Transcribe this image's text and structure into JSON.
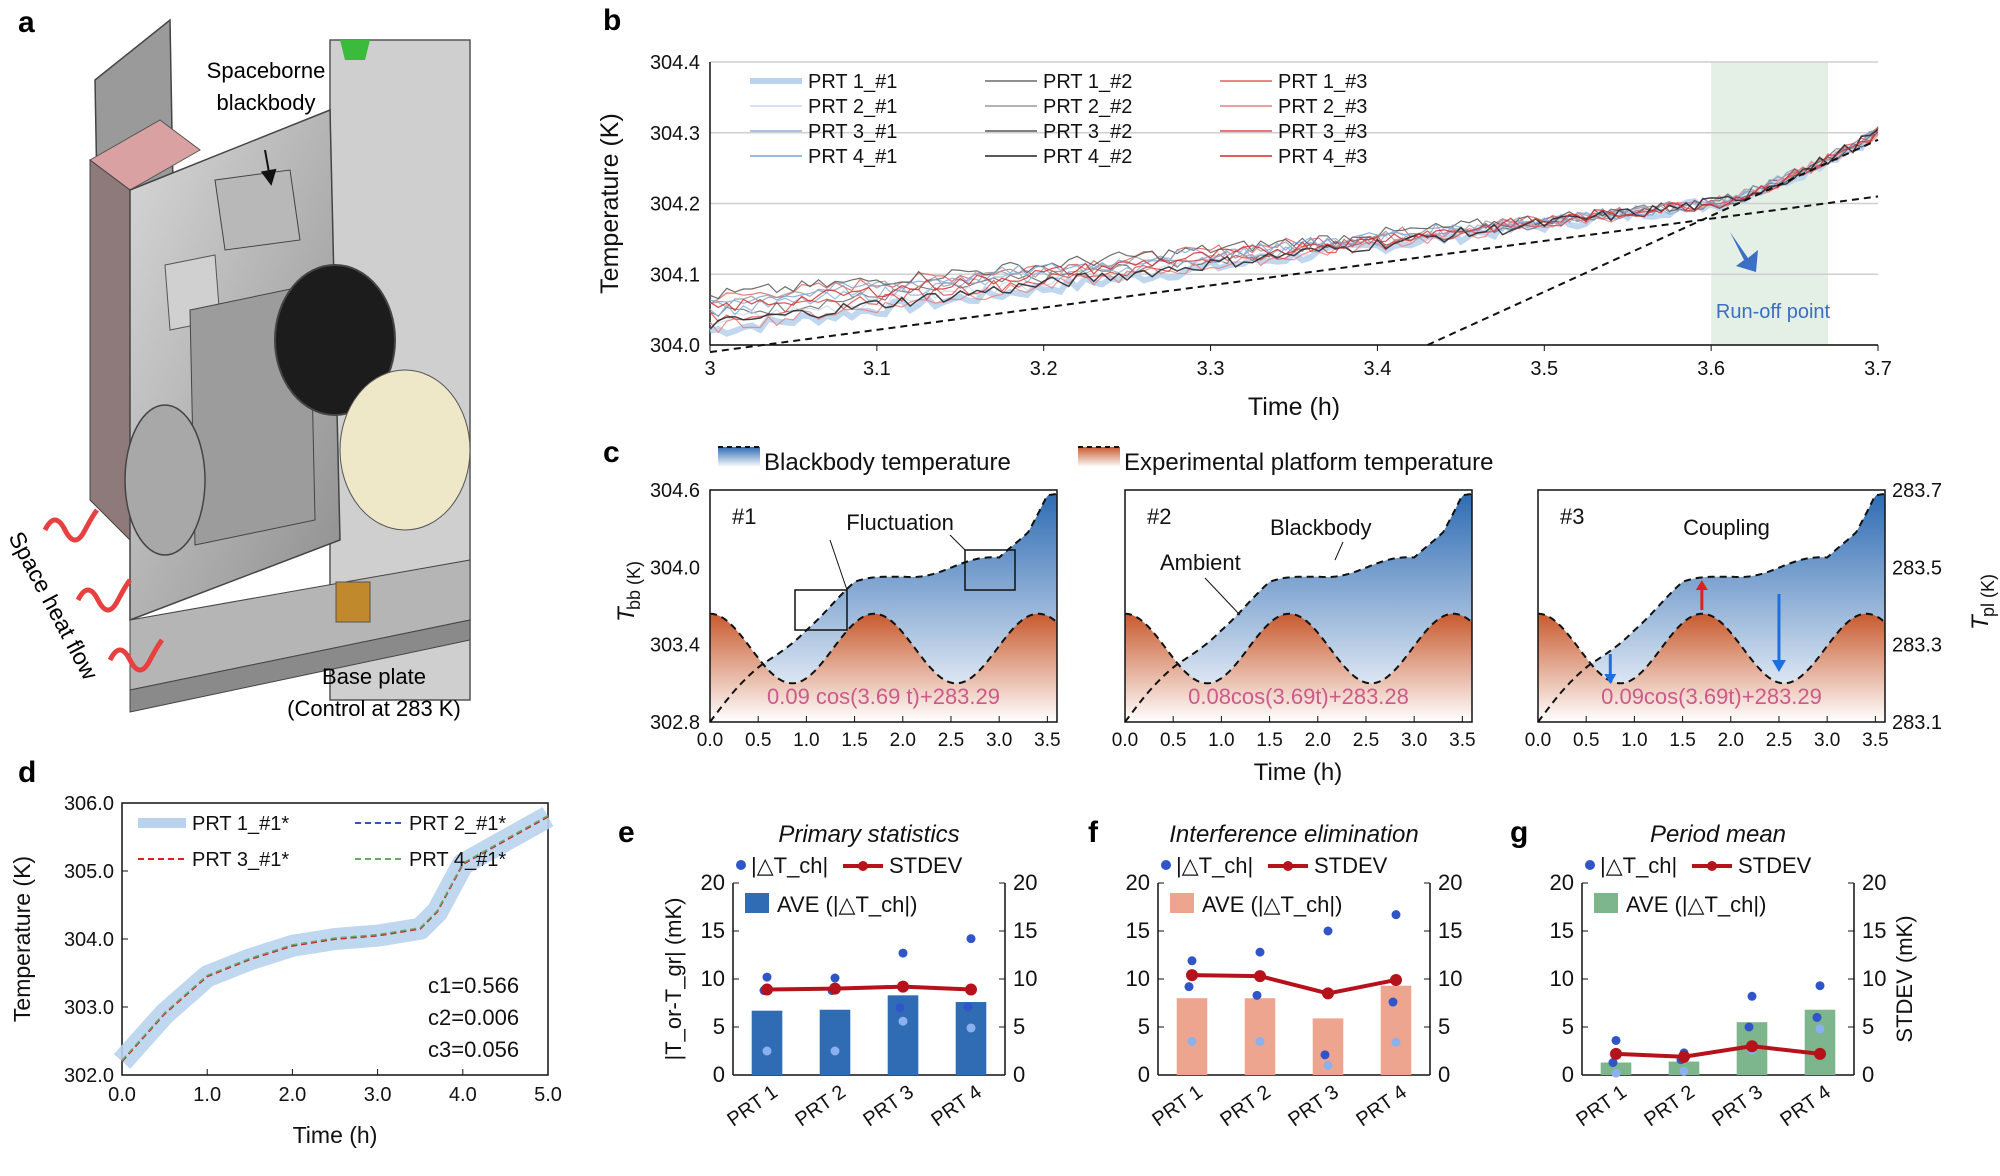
{
  "panels": {
    "a": "a",
    "b": "b",
    "c": "c",
    "d": "d",
    "e": "e",
    "f": "f",
    "g": "g"
  },
  "panel_a": {
    "label_blackbody_line1": "Spaceborne",
    "label_blackbody_line2": "blackbody",
    "label_heat": "Space heat flow",
    "label_base_line1": "Base plate",
    "label_base_line2": "(Control at 283 K)"
  },
  "colors": {
    "blue": "#2f6cb3",
    "lightblue": "#b9d3ee",
    "red": "#e0353b",
    "darkred": "#b5121b",
    "salmon": "#eea58f",
    "green": "#7db58c",
    "pink": "#cc5a8a",
    "runoff": "#3a6fc4"
  },
  "chart_data": [
    {
      "id": "b",
      "type": "line",
      "title": "",
      "xlabel": "Time (h)",
      "ylabel": "Temperature (K)",
      "xlim": [
        3.0,
        3.7
      ],
      "ylim": [
        304.0,
        304.4
      ],
      "xticks": [
        "3",
        "3.1",
        "3.2",
        "3.3",
        "3.4",
        "3.5",
        "3.6",
        "3.7"
      ],
      "yticks": [
        "304.0",
        "304.1",
        "304.2",
        "304.3",
        "304.4"
      ],
      "legend": [
        "PRT 1_#1",
        "PRT 1_#2",
        "PRT 1_#3",
        "PRT 2_#1",
        "PRT 2_#2",
        "PRT 2_#3",
        "PRT 3_#1",
        "PRT 3_#2",
        "PRT 3_#3",
        "PRT 4_#1",
        "PRT 4_#2",
        "PRT 4_#3"
      ],
      "highlight_region": [
        3.6,
        3.67
      ],
      "annotation": "Run-off point",
      "series_trend": {
        "start_low": 304.02,
        "start_high": 304.07,
        "mid_x": 3.6,
        "mid_value": 304.2,
        "end_value": 304.3
      },
      "fit_lines": [
        {
          "x": [
            3.0,
            3.7
          ],
          "y": [
            303.99,
            304.21
          ]
        },
        {
          "x": [
            3.43,
            3.7
          ],
          "y": [
            304.0,
            304.29
          ]
        }
      ]
    },
    {
      "id": "c",
      "type": "area",
      "legend": [
        "Blackbody temperature",
        "Experimental platform temperature"
      ],
      "xlabel": "Time (h)",
      "ylabel_left": "T_bb (K)",
      "ylabel_right": "T_pl (K)",
      "ylim_left": [
        302.8,
        304.6
      ],
      "yticks_left": [
        "304.6",
        "304.0",
        "303.4",
        "302.8"
      ],
      "ylim_right": [
        283.1,
        283.7
      ],
      "yticks_right": [
        "283.7",
        "283.5",
        "283.3",
        "283.1"
      ],
      "xticks": [
        "0.0",
        "0.5",
        "1.0",
        "1.5",
        "2.0",
        "2.5",
        "3.0",
        "3.5"
      ],
      "subplots": [
        {
          "tag": "#1",
          "annotation": "Fluctuation",
          "equation": "0.09 cos(3.69 t)+283.29"
        },
        {
          "tag": "#2",
          "annotation_a": "Ambient",
          "annotation_b": "Blackbody",
          "equation": "0.08cos(3.69t)+283.28"
        },
        {
          "tag": "#3",
          "annotation": "Coupling",
          "equation": "0.09cos(3.69t)+283.29"
        }
      ],
      "blackbody_curve": {
        "x": [
          0,
          0.5,
          1.0,
          1.5,
          2.0,
          2.5,
          3.0,
          3.3,
          3.5
        ],
        "y": [
          302.8,
          303.2,
          303.55,
          303.85,
          303.95,
          304.0,
          304.05,
          304.3,
          304.6
        ]
      },
      "platform_curve": {
        "amplitude": 0.09,
        "omega": 3.69,
        "offset": 283.29
      }
    },
    {
      "id": "d",
      "type": "line",
      "xlabel": "Time (h)",
      "ylabel": "Temperature (K)",
      "xlim": [
        0,
        5
      ],
      "ylim": [
        302,
        306
      ],
      "xticks": [
        "0.0",
        "1.0",
        "2.0",
        "3.0",
        "4.0",
        "5.0"
      ],
      "yticks": [
        "302.0",
        "303.0",
        "304.0",
        "305.0",
        "306.0"
      ],
      "legend": [
        "PRT 1_#1*",
        "PRT 2_#1*",
        "PRT 3_#1*",
        "PRT 4_#1*"
      ],
      "x": [
        0,
        0.5,
        1.0,
        1.5,
        2.0,
        2.5,
        3.0,
        3.5,
        3.7,
        4.0,
        4.5,
        5.0
      ],
      "y": [
        302.2,
        302.9,
        303.45,
        303.7,
        303.9,
        304.0,
        304.05,
        304.15,
        304.4,
        305.1,
        305.45,
        305.8
      ],
      "annotations": [
        "c1=0.566",
        "c2=0.006",
        "c3=0.056"
      ]
    },
    {
      "id": "e",
      "type": "bar",
      "title": "Primary statistics",
      "categories": [
        "PRT 1",
        "PRT 2",
        "PRT 3",
        "PRT 4"
      ],
      "ylabel_left": "|T_or-T_gr| (mK)",
      "ylim": [
        0,
        20
      ],
      "yticks": [
        "0",
        "5",
        "10",
        "15",
        "20"
      ],
      "legend": [
        "|△T_ch|",
        "STDEV",
        "AVE (|△T_ch|)"
      ],
      "bar_values": [
        6.7,
        6.8,
        8.3,
        7.6
      ],
      "stdev": [
        8.9,
        9.0,
        9.2,
        8.9
      ],
      "points": [
        [
          10.2,
          8.8,
          2.5
        ],
        [
          10.1,
          8.8,
          2.5
        ],
        [
          12.7,
          7.0,
          5.6
        ],
        [
          14.2,
          7.1,
          4.9
        ]
      ]
    },
    {
      "id": "f",
      "type": "bar",
      "title": "Interference elimination",
      "categories": [
        "PRT 1",
        "PRT 2",
        "PRT 3",
        "PRT 4"
      ],
      "ylim": [
        0,
        20
      ],
      "yticks": [
        "0",
        "5",
        "10",
        "15",
        "20"
      ],
      "legend": [
        "|△T_ch|",
        "STDEV",
        "AVE (|△T_ch|)"
      ],
      "bar_values": [
        8.0,
        8.0,
        5.9,
        9.3
      ],
      "stdev": [
        10.4,
        10.3,
        8.5,
        9.9
      ],
      "points": [
        [
          11.9,
          9.2,
          3.5
        ],
        [
          12.8,
          8.3,
          3.5
        ],
        [
          15.0,
          2.1,
          1.0
        ],
        [
          16.7,
          7.6,
          3.4
        ]
      ]
    },
    {
      "id": "g",
      "type": "bar",
      "title": "Period mean",
      "categories": [
        "PRT 1",
        "PRT 2",
        "PRT 3",
        "PRT 4"
      ],
      "ylabel_right": "STDEV (mK)",
      "ylim": [
        0,
        20
      ],
      "yticks": [
        "0",
        "5",
        "10",
        "15",
        "20"
      ],
      "legend": [
        "|△T_ch|",
        "STDEV",
        "AVE (|△T_ch|)"
      ],
      "bar_values": [
        1.3,
        1.4,
        5.5,
        6.8
      ],
      "stdev": [
        2.2,
        1.9,
        3.0,
        2.2
      ],
      "points": [
        [
          3.6,
          1.3,
          0.2
        ],
        [
          2.3,
          1.6,
          0.4
        ],
        [
          8.2,
          5.0,
          2.6
        ],
        [
          9.3,
          6.0,
          4.8
        ]
      ]
    }
  ]
}
